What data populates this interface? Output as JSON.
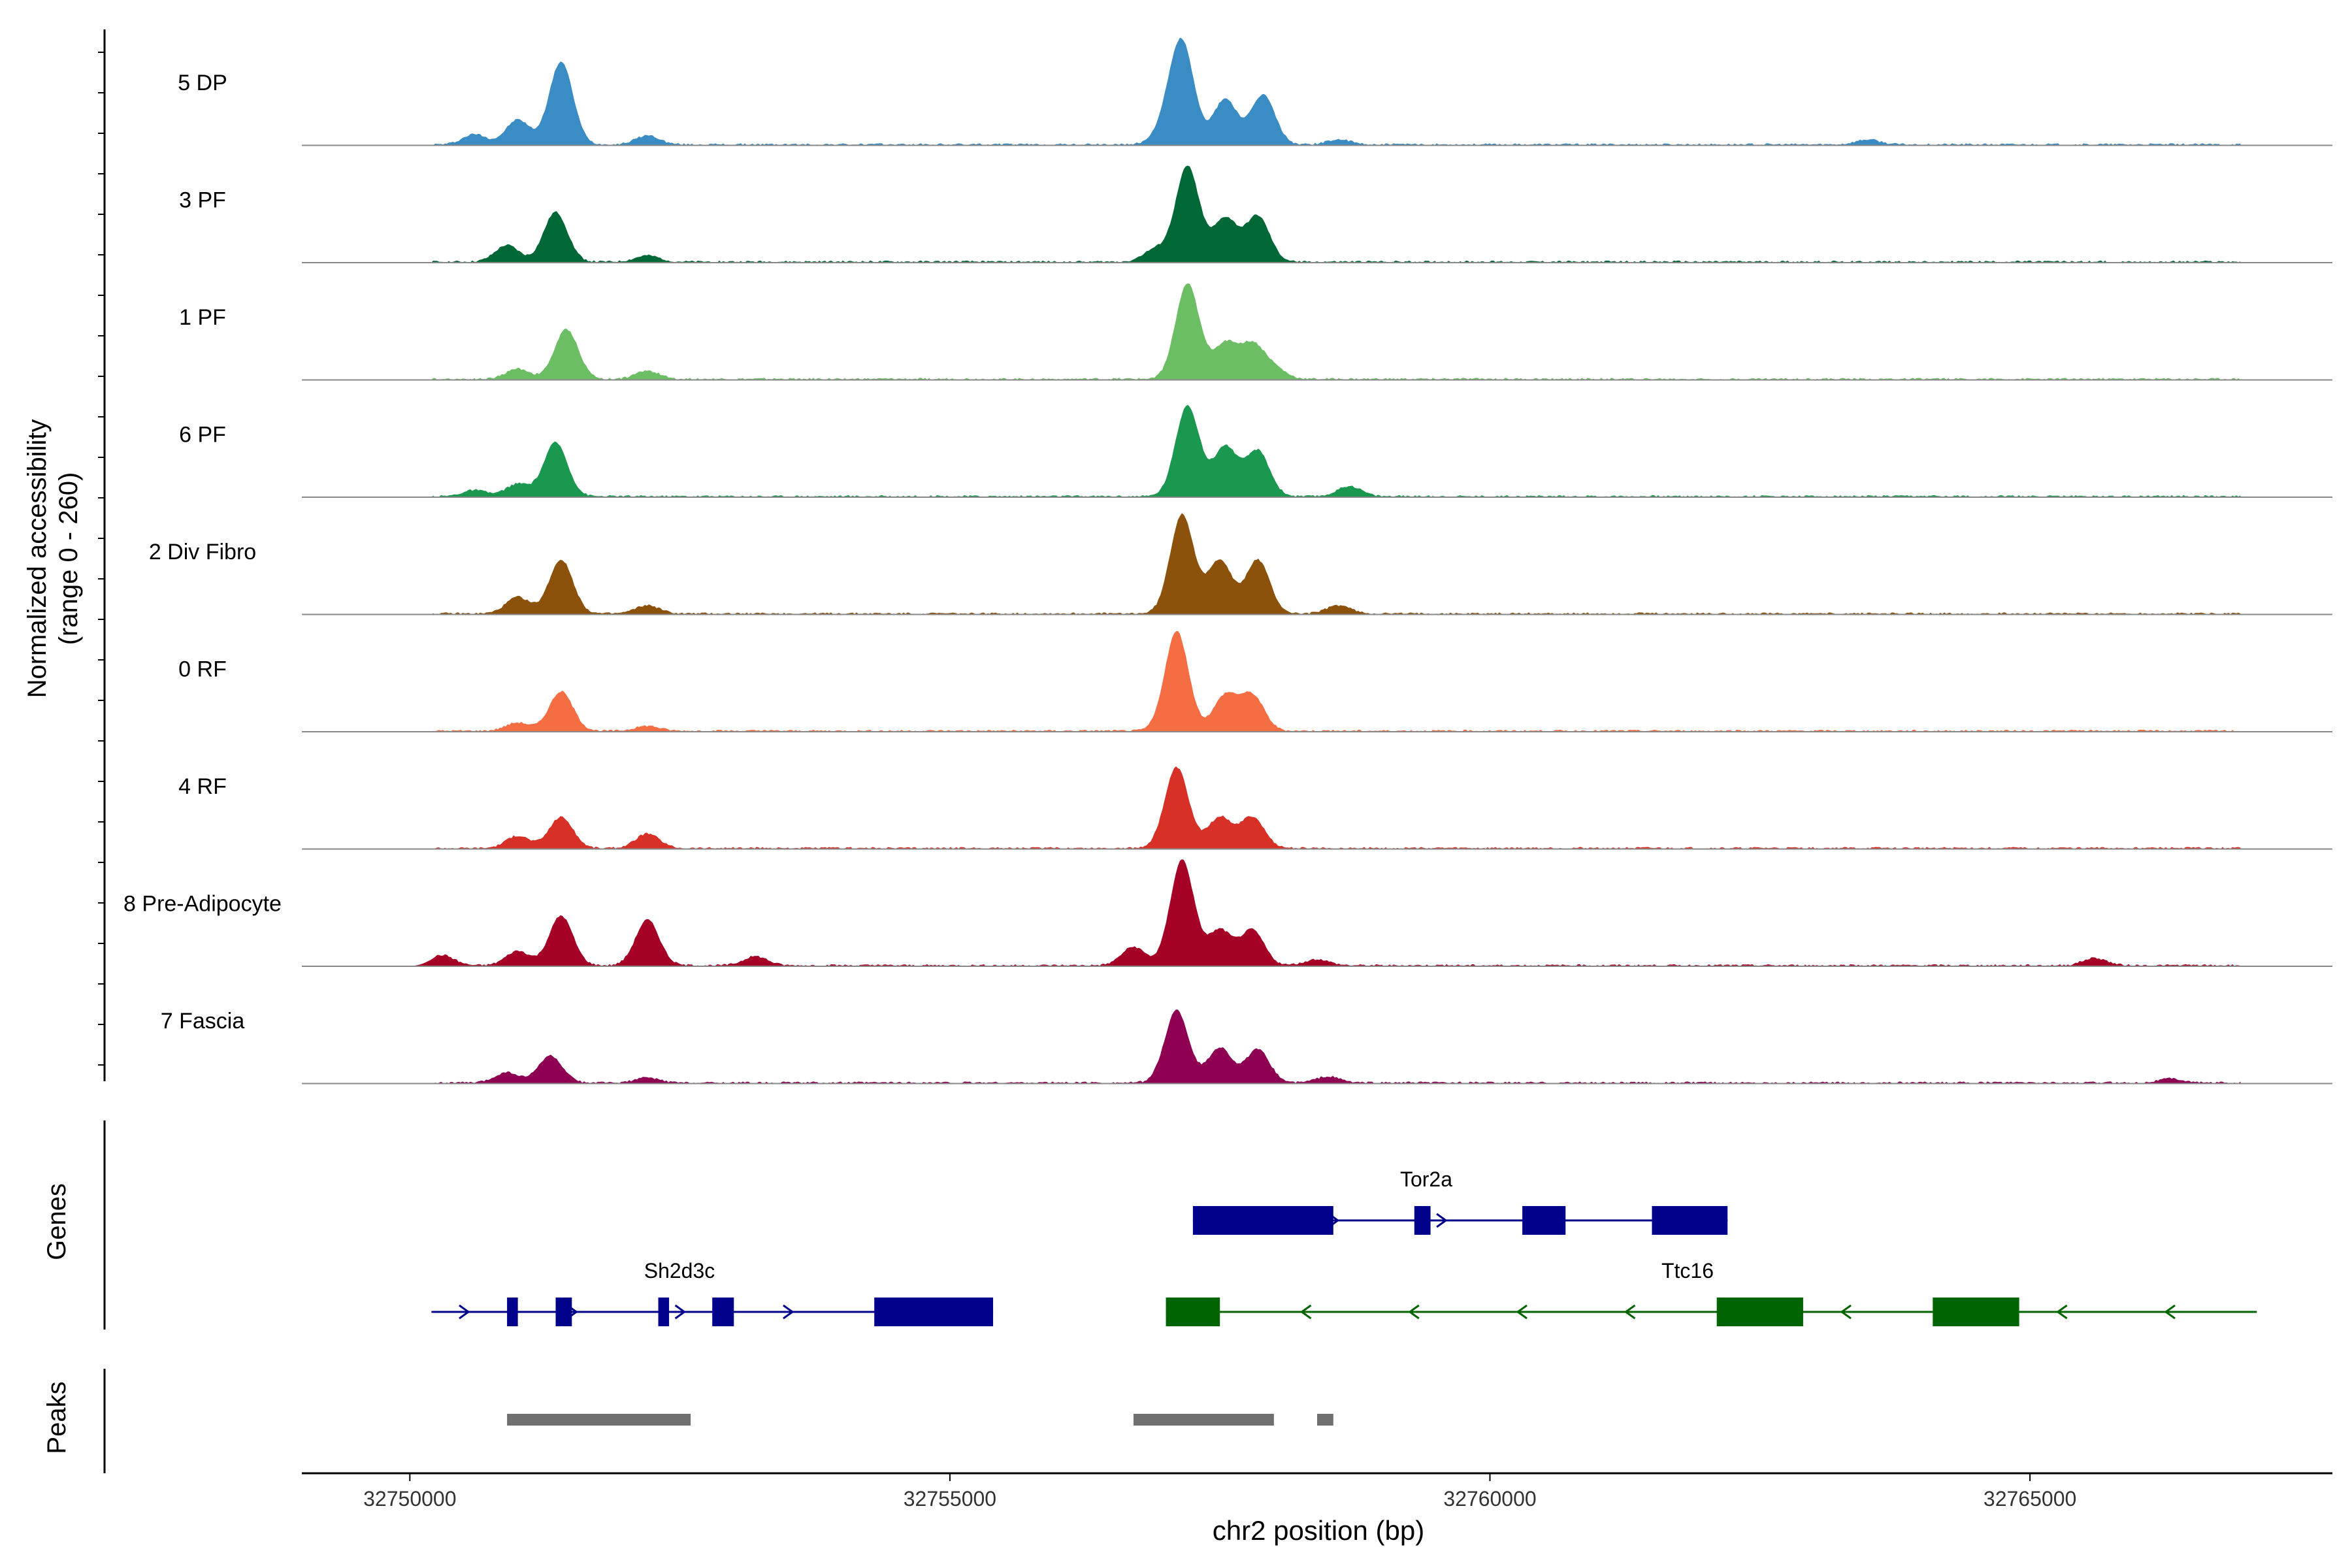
{
  "chart_data": {
    "type": "area",
    "title": "",
    "xlabel": "chr2 position (bp)",
    "ylabel_line1": "Normalized accessibility",
    "ylabel_line2": "(range 0 - 260)",
    "xlim": [
      32749000,
      32767800
    ],
    "xticks": [
      32750000,
      32755000,
      32760000,
      32765000
    ],
    "xtick_labels": [
      "32750000",
      "32755000",
      "32760000",
      "32765000"
    ],
    "ylim": [
      0,
      260
    ],
    "peak_positions": [
      32751400,
      32752600,
      32757150,
      32757600,
      32757900,
      32758400,
      32753100
    ],
    "tracks": [
      {
        "name": "5 DP",
        "color": "#3A8CC4",
        "peaks": [
          [
            32751400,
            200
          ],
          [
            32751000,
            60
          ],
          [
            32750600,
            25
          ],
          [
            32752200,
            22
          ],
          [
            32757150,
            240
          ],
          [
            32757550,
            110
          ],
          [
            32757900,
            120
          ],
          [
            32757000,
            40
          ],
          [
            32763500,
            12
          ],
          [
            32758600,
            12
          ]
        ]
      },
      {
        "name": "3 PF",
        "color": "#006837",
        "peaks": [
          [
            32751350,
            120
          ],
          [
            32750900,
            40
          ],
          [
            32757200,
            230
          ],
          [
            32757550,
            105
          ],
          [
            32757850,
            110
          ],
          [
            32756900,
            30
          ],
          [
            32752200,
            15
          ]
        ]
      },
      {
        "name": "1 PF",
        "color": "#6BBE63",
        "peaks": [
          [
            32751450,
            120
          ],
          [
            32751000,
            25
          ],
          [
            32752200,
            20
          ],
          [
            32757200,
            230
          ],
          [
            32757550,
            85
          ],
          [
            32757800,
            80
          ],
          [
            32758000,
            25
          ]
        ]
      },
      {
        "name": "6 PF",
        "color": "#1A9850",
        "peaks": [
          [
            32751350,
            130
          ],
          [
            32751000,
            30
          ],
          [
            32750600,
            15
          ],
          [
            32757200,
            220
          ],
          [
            32757550,
            120
          ],
          [
            32757850,
            110
          ],
          [
            32758700,
            25
          ]
        ]
      },
      {
        "name": "2 Div Fibro",
        "color": "#8C510A",
        "peaks": [
          [
            32751400,
            130
          ],
          [
            32751000,
            40
          ],
          [
            32752200,
            20
          ],
          [
            32757150,
            240
          ],
          [
            32757500,
            130
          ],
          [
            32757850,
            130
          ],
          [
            32758600,
            20
          ]
        ]
      },
      {
        "name": "0 RF",
        "color": "#F46D43",
        "peaks": [
          [
            32751400,
            95
          ],
          [
            32751000,
            20
          ],
          [
            32752200,
            12
          ],
          [
            32757100,
            240
          ],
          [
            32757550,
            85
          ],
          [
            32757800,
            85
          ]
        ]
      },
      {
        "name": "4 RF",
        "color": "#D73027",
        "peaks": [
          [
            32751400,
            75
          ],
          [
            32751000,
            30
          ],
          [
            32752200,
            35
          ],
          [
            32757100,
            195
          ],
          [
            32757500,
            75
          ],
          [
            32757800,
            75
          ]
        ]
      },
      {
        "name": "8 Pre-Adipocyte",
        "color": "#A50026",
        "peaks": [
          [
            32751400,
            120
          ],
          [
            32751000,
            35
          ],
          [
            32752200,
            110
          ],
          [
            32750300,
            25
          ],
          [
            32753200,
            22
          ],
          [
            32757150,
            255
          ],
          [
            32757500,
            85
          ],
          [
            32757800,
            85
          ],
          [
            32756700,
            45
          ],
          [
            32758400,
            15
          ],
          [
            32765600,
            18
          ]
        ]
      },
      {
        "name": "7 Fascia",
        "color": "#8E0152",
        "peaks": [
          [
            32751300,
            65
          ],
          [
            32750900,
            25
          ],
          [
            32752200,
            12
          ],
          [
            32757100,
            175
          ],
          [
            32757500,
            85
          ],
          [
            32757850,
            80
          ],
          [
            32758500,
            15
          ],
          [
            32766300,
            10
          ]
        ]
      }
    ],
    "genes": [
      {
        "name": "Tor2a",
        "strand": "+",
        "start": 32757250,
        "end": 32762200,
        "color": "#00008B",
        "exons": [
          [
            32757250,
            32758550
          ],
          [
            32759300,
            32759450
          ],
          [
            32760300,
            32760700
          ],
          [
            32761500,
            32762200
          ]
        ]
      },
      {
        "name": "Sh2d3c",
        "strand": "+",
        "start": 32750200,
        "end": 32755400,
        "color": "#00008B",
        "exons": [
          [
            32750900,
            32751000
          ],
          [
            32751350,
            32751500
          ],
          [
            32752300,
            32752400
          ],
          [
            32752800,
            32753000
          ],
          [
            32754300,
            32755400
          ]
        ]
      },
      {
        "name": "Ttc16",
        "strand": "-",
        "start": 32757000,
        "end": 32767100,
        "color": "#006400",
        "exons": [
          [
            32757000,
            32757500
          ],
          [
            32762100,
            32762900
          ],
          [
            32764100,
            32764900
          ]
        ]
      }
    ],
    "peak_regions": [
      [
        32750900,
        32752600
      ],
      [
        32756700,
        32758000
      ],
      [
        32758400,
        32758550
      ]
    ]
  },
  "panels": {
    "genes_label": "Genes",
    "peaks_label": "Peaks"
  }
}
